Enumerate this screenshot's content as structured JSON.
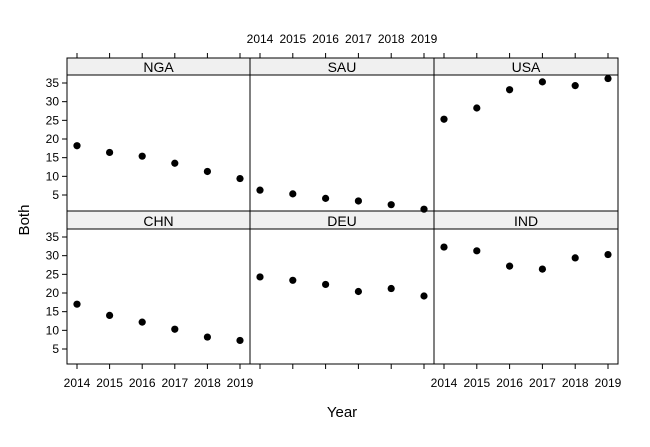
{
  "chart_data": {
    "type": "scatter",
    "xlabel": "Year",
    "ylabel": "Both",
    "x_ticks": [
      "2014",
      "2015",
      "2016",
      "2017",
      "2018",
      "2019"
    ],
    "y_ticks": [
      "5",
      "10",
      "15",
      "20",
      "25",
      "30",
      "35"
    ],
    "xlim": [
      2013.9,
      2019.1
    ],
    "ylim": [
      0,
      37
    ],
    "grid": false,
    "legend": "none",
    "point_color": "#000000",
    "strip_color": "#f0f0f0",
    "panels": [
      {
        "name": "NGA",
        "x": [
          2014,
          2015,
          2016,
          2017,
          2018,
          2019
        ],
        "values": [
          18.2,
          16.4,
          15.4,
          13.5,
          11.3,
          9.4
        ]
      },
      {
        "name": "SAU",
        "x": [
          2014,
          2015,
          2016,
          2017,
          2018,
          2019
        ],
        "values": [
          6.3,
          5.3,
          4.1,
          3.4,
          2.4,
          1.2
        ]
      },
      {
        "name": "USA",
        "x": [
          2014,
          2015,
          2016,
          2017,
          2018,
          2019
        ],
        "values": [
          25.3,
          28.3,
          33.2,
          35.3,
          34.3,
          36.2
        ]
      },
      {
        "name": "CHN",
        "x": [
          2014,
          2015,
          2016,
          2017,
          2018,
          2019
        ],
        "values": [
          17.0,
          14.0,
          12.2,
          10.3,
          8.2,
          7.3
        ]
      },
      {
        "name": "DEU",
        "x": [
          2014,
          2015,
          2016,
          2017,
          2018,
          2019
        ],
        "values": [
          24.3,
          23.4,
          22.3,
          20.4,
          21.2,
          19.2
        ]
      },
      {
        "name": "IND",
        "x": [
          2014,
          2015,
          2016,
          2017,
          2018,
          2019
        ],
        "values": [
          32.3,
          31.3,
          27.2,
          26.4,
          29.4,
          30.3
        ]
      }
    ]
  }
}
